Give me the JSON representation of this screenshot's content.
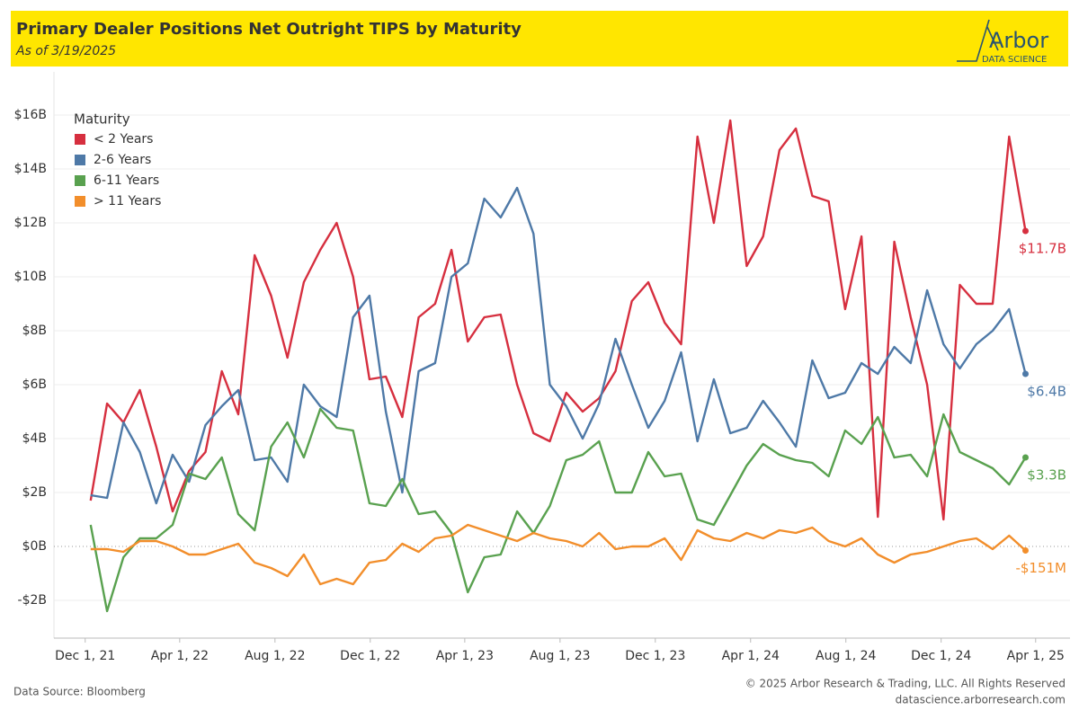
{
  "chart_data": {
    "type": "line",
    "title": "Primary Dealer Positions Net Outright TIPS by Maturity",
    "subtitle": "As of 3/19/2025",
    "legend_title": "Maturity",
    "legend_position": "upper left",
    "grid": true,
    "xlim": [
      "2021-10-22",
      "2025-05-15"
    ],
    "xticks": [
      {
        "value": "2021-12-01",
        "label": "Dec 1, 21"
      },
      {
        "value": "2022-04-01",
        "label": "Apr 1, 22"
      },
      {
        "value": "2022-08-01",
        "label": "Aug 1, 22"
      },
      {
        "value": "2022-12-01",
        "label": "Dec 1, 22"
      },
      {
        "value": "2023-04-01",
        "label": "Apr 1, 23"
      },
      {
        "value": "2023-08-01",
        "label": "Aug 1, 23"
      },
      {
        "value": "2023-12-01",
        "label": "Dec 1, 23"
      },
      {
        "value": "2024-04-01",
        "label": "Apr 1, 24"
      },
      {
        "value": "2024-08-01",
        "label": "Aug 1, 24"
      },
      {
        "value": "2024-12-01",
        "label": "Dec 1, 24"
      },
      {
        "value": "2025-04-01",
        "label": "Apr 1, 25"
      }
    ],
    "ylim": [
      -3.4,
      17.6
    ],
    "yticks": [
      {
        "value": -2,
        "label": "-$2B"
      },
      {
        "value": 0,
        "label": "$0B"
      },
      {
        "value": 2,
        "label": "$2B"
      },
      {
        "value": 4,
        "label": "$4B"
      },
      {
        "value": 6,
        "label": "$6B"
      },
      {
        "value": 8,
        "label": "$8B"
      },
      {
        "value": 10,
        "label": "$10B"
      },
      {
        "value": 12,
        "label": "$12B"
      },
      {
        "value": 14,
        "label": "$14B"
      },
      {
        "value": 16,
        "label": "$16B"
      }
    ],
    "x": [
      "2021-12-08",
      "2021-12-29",
      "2022-01-19",
      "2022-02-09",
      "2022-03-02",
      "2022-03-23",
      "2022-04-13",
      "2022-05-04",
      "2022-05-25",
      "2022-06-15",
      "2022-07-06",
      "2022-07-27",
      "2022-08-17",
      "2022-09-07",
      "2022-09-28",
      "2022-10-19",
      "2022-11-09",
      "2022-11-30",
      "2022-12-21",
      "2023-01-11",
      "2023-02-01",
      "2023-02-22",
      "2023-03-15",
      "2023-04-05",
      "2023-04-26",
      "2023-05-17",
      "2023-06-07",
      "2023-06-28",
      "2023-07-19",
      "2023-08-09",
      "2023-08-30",
      "2023-09-20",
      "2023-10-11",
      "2023-11-01",
      "2023-11-22",
      "2023-12-13",
      "2024-01-03",
      "2024-01-24",
      "2024-02-14",
      "2024-03-06",
      "2024-03-27",
      "2024-04-17",
      "2024-05-08",
      "2024-05-29",
      "2024-06-19",
      "2024-07-10",
      "2024-07-31",
      "2024-08-21",
      "2024-09-11",
      "2024-10-02",
      "2024-10-23",
      "2024-11-13",
      "2024-12-04",
      "2024-12-25",
      "2025-01-15",
      "2025-02-05",
      "2025-02-26",
      "2025-03-19"
    ],
    "series": [
      {
        "name": "< 2 Years",
        "color": "#d62f3f",
        "last_label": "$11.7B",
        "values": [
          1.7,
          5.3,
          4.6,
          5.8,
          3.7,
          1.3,
          2.8,
          3.5,
          6.5,
          4.9,
          10.8,
          9.3,
          7.0,
          9.8,
          11.0,
          12.0,
          10.0,
          6.2,
          6.3,
          4.8,
          8.5,
          9.0,
          11.0,
          7.6,
          8.5,
          8.6,
          6.0,
          4.2,
          3.9,
          5.7,
          5.0,
          5.5,
          6.5,
          9.1,
          9.8,
          8.3,
          7.5,
          15.2,
          12.0,
          15.8,
          10.4,
          11.5,
          14.7,
          15.5,
          13.0,
          12.8,
          8.8,
          11.5,
          1.1,
          11.3,
          8.5,
          6.0,
          1.0,
          9.7,
          9.0,
          9.0,
          15.2,
          11.7
        ]
      },
      {
        "name": "2-6 Years",
        "color": "#4e79a7",
        "last_label": "$6.4B",
        "values": [
          1.9,
          1.8,
          4.6,
          3.5,
          1.6,
          3.4,
          2.4,
          4.5,
          5.2,
          5.8,
          3.2,
          3.3,
          2.4,
          6.0,
          5.2,
          4.8,
          8.5,
          9.3,
          5.0,
          2.0,
          6.5,
          6.8,
          10.0,
          10.5,
          12.9,
          12.2,
          13.3,
          11.6,
          6.0,
          5.2,
          4.0,
          5.3,
          7.7,
          6.0,
          4.4,
          5.4,
          7.2,
          3.9,
          6.2,
          4.2,
          4.4,
          5.4,
          4.6,
          3.7,
          6.9,
          5.5,
          5.7,
          6.8,
          6.4,
          7.4,
          6.8,
          9.5,
          7.5,
          6.6,
          7.5,
          8.0,
          8.8,
          6.4
        ]
      },
      {
        "name": "6-11 Years",
        "color": "#59a14f",
        "last_label": "$3.3B",
        "values": [
          0.8,
          -2.4,
          -0.4,
          0.3,
          0.3,
          0.8,
          2.7,
          2.5,
          3.3,
          1.2,
          0.6,
          3.7,
          4.6,
          3.3,
          5.1,
          4.4,
          4.3,
          1.6,
          1.5,
          2.5,
          1.2,
          1.3,
          0.5,
          -1.7,
          -0.4,
          -0.3,
          1.3,
          0.5,
          1.5,
          3.2,
          3.4,
          3.9,
          2.0,
          2.0,
          3.5,
          2.6,
          2.7,
          1.0,
          0.8,
          1.9,
          3.0,
          3.8,
          3.4,
          3.2,
          3.1,
          2.6,
          4.3,
          3.8,
          4.8,
          3.3,
          3.4,
          2.6,
          4.9,
          3.5,
          3.2,
          2.9,
          2.3,
          3.3
        ]
      },
      {
        "name": "> 11 Years",
        "color": "#f28e2b",
        "last_label": "-$151M",
        "values": [
          -0.1,
          -0.1,
          -0.2,
          0.2,
          0.2,
          0.0,
          -0.3,
          -0.3,
          -0.1,
          0.1,
          -0.6,
          -0.8,
          -1.1,
          -0.3,
          -1.4,
          -1.2,
          -1.4,
          -0.6,
          -0.5,
          0.1,
          -0.2,
          0.3,
          0.4,
          0.8,
          0.6,
          0.4,
          0.2,
          0.5,
          0.3,
          0.2,
          0.0,
          0.5,
          -0.1,
          0.0,
          0.0,
          0.3,
          -0.5,
          0.6,
          0.3,
          0.2,
          0.5,
          0.3,
          0.6,
          0.5,
          0.7,
          0.2,
          0.0,
          0.3,
          -0.3,
          -0.6,
          -0.3,
          -0.2,
          0.0,
          0.2,
          0.3,
          -0.1,
          0.4,
          -0.151
        ]
      }
    ]
  },
  "logo": {
    "name": "Arbor",
    "tagline": "DATA SCIENCE"
  },
  "footer": {
    "source": "Data Source: Bloomberg",
    "copyright": "© 2025 Arbor Research & Trading, LLC. All Rights Reserved",
    "website": "datascience.arborresearch.com"
  }
}
